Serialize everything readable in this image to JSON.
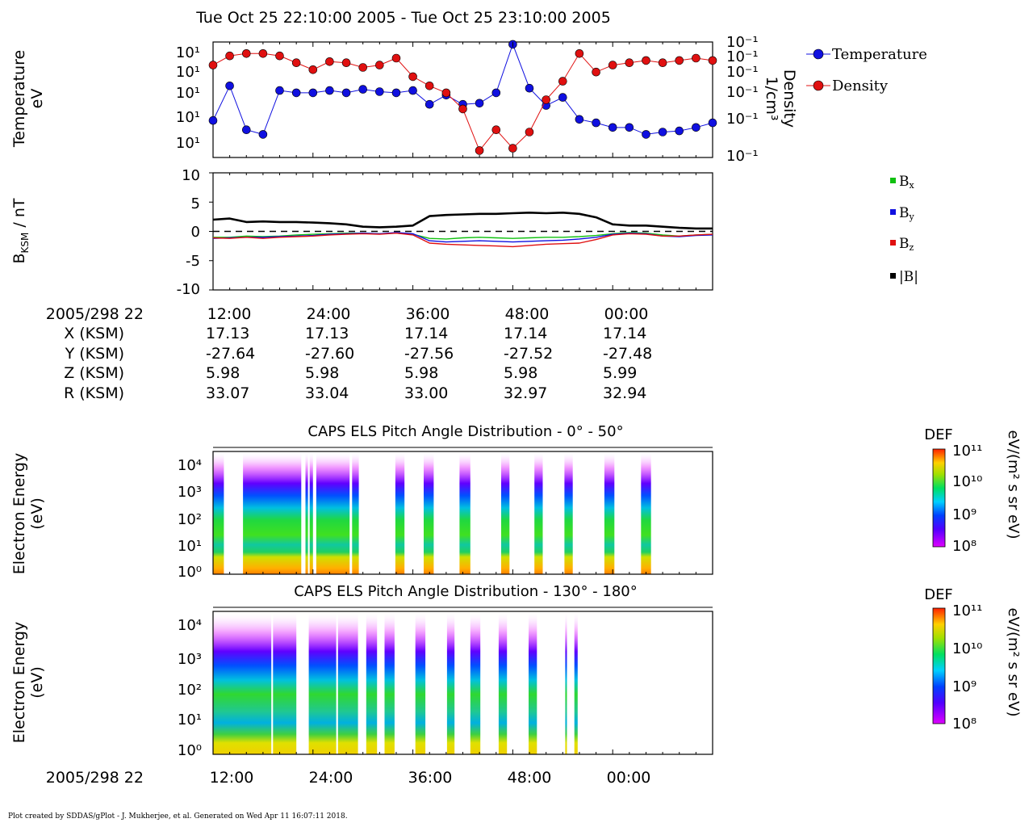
{
  "title": "Tue Oct 25 22:10:00 2005 - Tue Oct 25 23:10:00 2005",
  "footer": "Plot created by SDDAS/gPlot - J. Mukherjee, et al.  Generated on Wed Apr 11 16:07:11 2018.",
  "colors": {
    "temperature": "#1010e0",
    "density": "#e01010",
    "bx": "#10c010",
    "by": "#1010e0",
    "bz": "#e01010",
    "bmag": "#000000"
  },
  "chart_data": [
    {
      "type": "line",
      "ylabel_left": [
        "Temperature",
        "eV"
      ],
      "ylabel_right": [
        "Density",
        "1/cm³"
      ],
      "left_tick_labels": [
        "10¹",
        "10¹",
        "10¹",
        "10¹",
        "10¹"
      ],
      "right_tick_labels": [
        "10⁻¹",
        "10⁻¹",
        "10⁻¹",
        "10⁻¹",
        "10⁻¹",
        "10⁻¹"
      ],
      "legend": [
        "Temperature",
        "Density"
      ],
      "x_minutes": [
        0,
        2,
        4,
        6,
        8,
        10,
        12,
        14,
        16,
        18,
        20,
        22,
        24,
        26,
        28,
        30,
        32,
        34,
        36,
        38,
        40,
        42,
        44,
        46,
        48,
        50,
        52,
        54,
        56,
        58,
        60
      ],
      "series": [
        {
          "name": "Temperature",
          "values": [
            0.32,
            0.62,
            0.24,
            0.2,
            0.58,
            0.56,
            0.56,
            0.58,
            0.56,
            0.59,
            0.57,
            0.56,
            0.58,
            0.46,
            0.54,
            0.46,
            0.47,
            0.56,
            0.98,
            0.6,
            0.45,
            0.52,
            0.33,
            0.3,
            0.26,
            0.26,
            0.2,
            0.22,
            0.23,
            0.26,
            0.3
          ]
        },
        {
          "name": "Density",
          "values": [
            0.8,
            0.88,
            0.9,
            0.9,
            0.88,
            0.82,
            0.76,
            0.83,
            0.82,
            0.78,
            0.8,
            0.86,
            0.7,
            0.62,
            0.56,
            0.42,
            0.06,
            0.24,
            0.08,
            0.22,
            0.5,
            0.66,
            0.9,
            0.74,
            0.8,
            0.82,
            0.84,
            0.82,
            0.84,
            0.86,
            0.84
          ]
        }
      ]
    },
    {
      "type": "line",
      "ylabel": "B",
      "ylabel_sub": "KSM",
      "ylabel_unit": " / nT",
      "ylim": [
        -10,
        10
      ],
      "yticks": [
        10,
        5,
        0,
        -5,
        -10
      ],
      "ytick_labels": [
        "10",
        "5",
        "0",
        "-5",
        "-10"
      ],
      "x_minutes": [
        0,
        2,
        4,
        6,
        8,
        10,
        12,
        14,
        16,
        18,
        20,
        22,
        24,
        26,
        28,
        30,
        32,
        34,
        36,
        38,
        40,
        42,
        44,
        46,
        48,
        50,
        52,
        54,
        56,
        58,
        60
      ],
      "series": [
        {
          "name": "Bx",
          "label": "B",
          "sub": "x",
          "values": [
            -1.0,
            -1.0,
            -0.8,
            -0.9,
            -0.8,
            -0.6,
            -0.5,
            -0.4,
            -0.3,
            -0.3,
            -0.4,
            -0.3,
            -0.5,
            -1.2,
            -1.3,
            -1.1,
            -1.0,
            -1.1,
            -1.2,
            -1.1,
            -1.0,
            -1.0,
            -0.9,
            -0.7,
            -0.4,
            -0.2,
            -0.3,
            -0.6,
            -0.8,
            -0.6,
            -0.5
          ]
        },
        {
          "name": "By",
          "label": "B",
          "sub": "y",
          "values": [
            -1.2,
            -1.1,
            -1.0,
            -1.0,
            -0.9,
            -0.8,
            -0.7,
            -0.5,
            -0.4,
            -0.3,
            -0.4,
            -0.2,
            -0.4,
            -1.6,
            -1.8,
            -1.7,
            -1.6,
            -1.7,
            -1.8,
            -1.7,
            -1.6,
            -1.5,
            -1.3,
            -1.0,
            -0.5,
            -0.3,
            -0.4,
            -0.8,
            -0.9,
            -0.7,
            -0.6
          ]
        },
        {
          "name": "Bz",
          "label": "B",
          "sub": "z",
          "values": [
            -1.1,
            -1.2,
            -1.0,
            -1.2,
            -1.0,
            -0.9,
            -0.8,
            -0.6,
            -0.5,
            -0.4,
            -0.5,
            -0.3,
            -0.6,
            -2.0,
            -2.2,
            -2.3,
            -2.4,
            -2.5,
            -2.6,
            -2.4,
            -2.2,
            -2.1,
            -2.0,
            -1.4,
            -0.6,
            -0.4,
            -0.5,
            -0.8,
            -0.8,
            -0.6,
            -0.5
          ]
        },
        {
          "name": "|B|",
          "label": "|B|",
          "sub": "",
          "values": [
            2.0,
            2.2,
            1.6,
            1.7,
            1.6,
            1.6,
            1.5,
            1.4,
            1.2,
            0.8,
            0.7,
            0.8,
            1.0,
            2.6,
            2.8,
            2.9,
            3.0,
            3.0,
            3.1,
            3.2,
            3.1,
            3.2,
            3.0,
            2.4,
            1.2,
            1.0,
            1.0,
            0.8,
            0.6,
            0.5,
            0.5
          ]
        }
      ]
    },
    {
      "type": "heatmap",
      "title": "CAPS ELS Pitch Angle Distribution - 0° - 50°",
      "ylabel": [
        "Electron Energy",
        "(eV)"
      ],
      "ytick_labels": [
        "10⁴",
        "10³",
        "10²",
        "10¹",
        "10⁰"
      ],
      "colorbar": {
        "label": "DEF",
        "unit": "eV/(m² s sr eV)",
        "ticks": [
          "10¹¹",
          "10¹⁰",
          "10⁹",
          "10⁸"
        ]
      },
      "data_blocks_min": [
        [
          0,
          1.3
        ],
        [
          3.6,
          10.6
        ],
        [
          11.1,
          11.4
        ],
        [
          11.6,
          12.0
        ],
        [
          12.4,
          16.4
        ],
        [
          16.7,
          17.5
        ],
        [
          21.9,
          23.0
        ],
        [
          25.3,
          26.5
        ],
        [
          29.6,
          30.9
        ],
        [
          34.6,
          35.6
        ],
        [
          38.6,
          39.6
        ],
        [
          42.2,
          43.2
        ],
        [
          47.0,
          48.2
        ],
        [
          51.4,
          52.6
        ]
      ]
    },
    {
      "type": "heatmap",
      "title": "CAPS ELS Pitch Angle Distribution - 130° - 180°",
      "ylabel": [
        "Electron Energy",
        "(eV)"
      ],
      "ytick_labels": [
        "10⁴",
        "10³",
        "10²",
        "10¹",
        "10⁰"
      ],
      "colorbar": {
        "label": "DEF",
        "unit": "eV/(m² s sr eV)",
        "ticks": [
          "10¹¹",
          "10¹⁰",
          "10⁹",
          "10⁸"
        ]
      },
      "data_blocks_min": [
        [
          0,
          7.0
        ],
        [
          7.2,
          10.0
        ],
        [
          11.5,
          14.8
        ],
        [
          15.0,
          17.4
        ],
        [
          18.4,
          19.7
        ],
        [
          20.6,
          21.8
        ],
        [
          24.3,
          25.5
        ],
        [
          28.1,
          29.0
        ],
        [
          30.9,
          32.1
        ],
        [
          34.3,
          35.3
        ],
        [
          37.9,
          38.9
        ],
        [
          42.3,
          42.5
        ],
        [
          43.4,
          43.8
        ]
      ]
    }
  ],
  "time_axis": {
    "date_label": "2005/298 22",
    "tick_labels": [
      "12:00",
      "24:00",
      "36:00",
      "48:00",
      "00:00"
    ]
  },
  "ephemeris": {
    "rows": [
      {
        "label": "X (KSM)",
        "values": [
          "17.13",
          "17.13",
          "17.14",
          "17.14",
          "17.14"
        ]
      },
      {
        "label": "Y (KSM)",
        "values": [
          "-27.64",
          "-27.60",
          "-27.56",
          "-27.52",
          "-27.48"
        ]
      },
      {
        "label": "Z (KSM)",
        "values": [
          "5.98",
          "5.98",
          "5.98",
          "5.98",
          "5.99"
        ]
      },
      {
        "label": "R (KSM)",
        "values": [
          "33.07",
          "33.04",
          "33.00",
          "32.97",
          "32.94"
        ]
      }
    ]
  }
}
